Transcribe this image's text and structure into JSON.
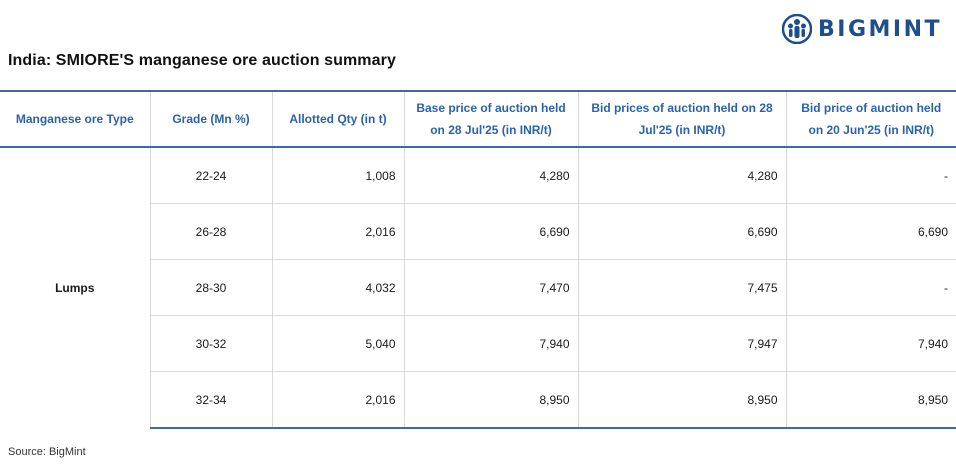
{
  "brand": {
    "name": "BIGMINT",
    "color": "#1e4e8c"
  },
  "title": "India:  SMIORE'S manganese ore auction summary",
  "table": {
    "headers": [
      "Manganese ore Type",
      "Grade (Mn %)",
      "Allotted Qty (in t)",
      "Base price of auction held on 28 Jul'25 (in INR/t)",
      "Bid prices of auction held on 28 Jul'25 (in INR/t)",
      "Bid price of auction held on 20 Jun'25 (in INR/t)"
    ],
    "group_label": "Lumps",
    "rows": [
      {
        "grade": "22-24",
        "qty": "1,008",
        "base": "4,280",
        "bid_jul": "4,280",
        "bid_jun": "-"
      },
      {
        "grade": "26-28",
        "qty": "2,016",
        "base": "6,690",
        "bid_jul": "6,690",
        "bid_jun": "6,690"
      },
      {
        "grade": "28-30",
        "qty": "4,032",
        "base": "7,470",
        "bid_jul": "7,475",
        "bid_jun": "-"
      },
      {
        "grade": "30-32",
        "qty": "5,040",
        "base": "7,940",
        "bid_jul": "7,947",
        "bid_jun": "7,940"
      },
      {
        "grade": "32-34",
        "qty": "2,016",
        "base": "8,950",
        "bid_jul": "8,950",
        "bid_jun": "8,950"
      }
    ]
  },
  "source": "Source: BigMint",
  "colors": {
    "header_text": "#2a62b0",
    "rule": "#3a6aa8"
  }
}
